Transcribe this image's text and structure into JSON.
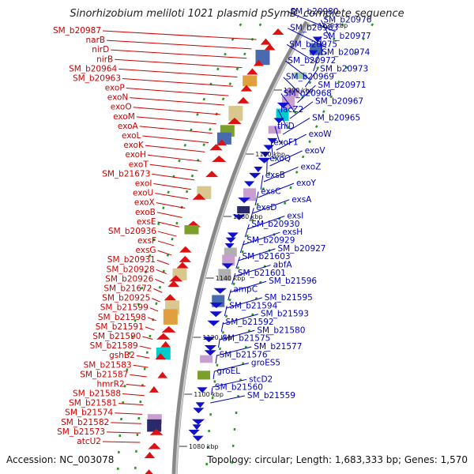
{
  "title": "Sinorhizobium meliloti 1021 plasmid pSymB, complete sequence",
  "footer": {
    "accession": "Accession: NC_003078",
    "topology": "Topology: circular; Length: 1,683,333 bp; Genes: 1,570"
  },
  "colors": {
    "forward": "#dd1111",
    "reverse": "#1111cc",
    "backbone": "#999999",
    "label_left": "#cc0000",
    "label_right": "#0000bb",
    "tick_marker": "#229922"
  },
  "ticks": [
    "1220 kbp",
    "1200 kbp",
    "1180 kbp",
    "1160 kbp",
    "1140 kbp",
    "1120 kbp",
    "1100 kbp",
    "1080 kbp"
  ],
  "left_labels": [
    "SM_b20987",
    "narB",
    "nirD",
    "nirB",
    "SM_b20964",
    "SM_b20963",
    "exoP",
    "exoN",
    "exoO",
    "exoM",
    "exoA",
    "exoL",
    "exoK",
    "exoH",
    "exoT",
    "SM_b21673",
    "exoI",
    "exoU",
    "exoX",
    "exoB",
    "exsE",
    "SM_b20936",
    "exsF",
    "exsG",
    "SM_b20931",
    "SM_b20928",
    "SM_b20926",
    "SM_b21672",
    "SM_b20925",
    "SM_b21599",
    "SM_b21598",
    "SM_b21591",
    "SM_b21590",
    "SM_b21589",
    "gshB2",
    "SM_b21583",
    "SM_b21587",
    "hmrR2",
    "SM_b21588",
    "SM_b21581",
    "SM_b21574",
    "SM_b21582",
    "SM_b21573",
    "atcU2"
  ],
  "right_labels": [
    "SM_b20980",
    "SM_b20976",
    "SM_b20983",
    "SM_b20977",
    "SM_b20975",
    "SM_b20974",
    "SM_b20972",
    "SM_b20973",
    "SM_b20969",
    "SM_b20971",
    "SM_b20968",
    "SM_b20967",
    "lacZ2",
    "SM_b20965",
    "thiD",
    "exoW",
    "exoF1",
    "exoV",
    "exoQ",
    "exoZ",
    "exsB",
    "exoY",
    "exsC",
    "exsA",
    "exsD",
    "exsI",
    "SM_b20930",
    "exsH",
    "SM_b20929",
    "SM_b20927",
    "SM_b21603",
    "abfA",
    "SM_b21601",
    "SM_b21596",
    "ampC",
    "SM_b21595",
    "SM_b21594",
    "SM_b21593",
    "SM_b21592",
    "SM_b21580",
    "SM_b21575",
    "SM_b21577",
    "SM_b21576",
    "groES5",
    "groEL",
    "stcD2",
    "SM_b21560",
    "SM_b21559"
  ]
}
